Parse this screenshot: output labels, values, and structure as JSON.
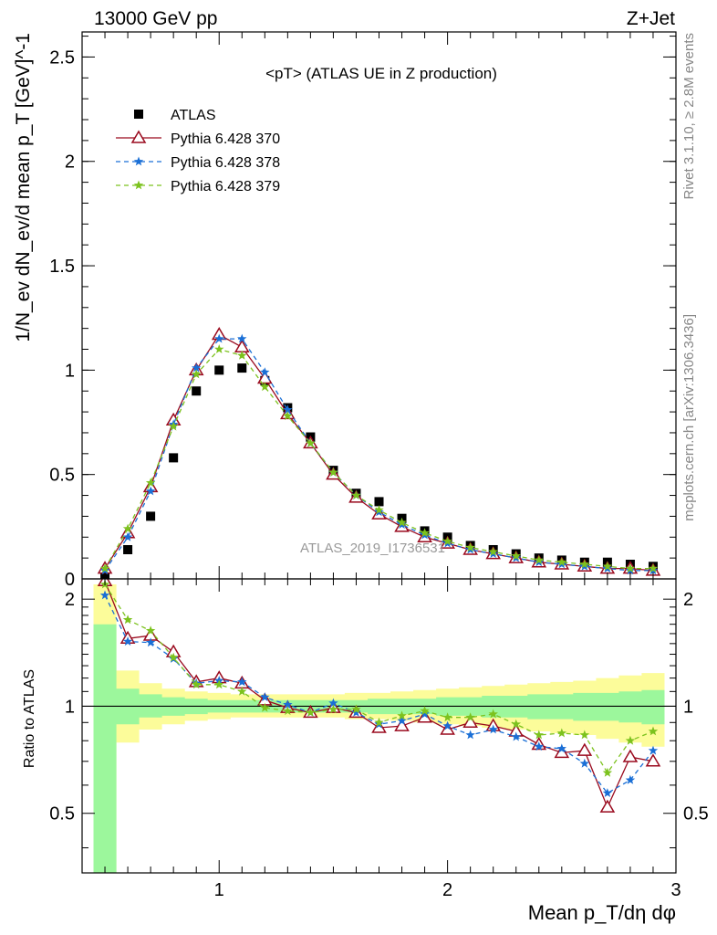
{
  "header": {
    "left": "13000 GeV pp",
    "right": "Z+Jet"
  },
  "side_labels": {
    "rivet": "Rivet 3.1.10, ≥ 2.8M events",
    "mcplots": "mcplots.cern.ch [arXiv:1306.3436]"
  },
  "watermark": "ATLAS_2019_I1736531",
  "colors": {
    "atlas": "#000000",
    "p370": "#9a0a1e",
    "p378": "#1a6fd6",
    "p379": "#7cc21e",
    "band_green": "#9cf79c",
    "band_yellow": "#fcfc9a"
  },
  "chart_data": [
    {
      "type": "scatter",
      "title": "<pT> (ATLAS UE in Z production)",
      "xlabel": "Mean p_T/dη dφ",
      "ylabel": "1/N_ev dN_ev/d mean p_T [GeV]^-1",
      "xlim": [
        0.4,
        3.0
      ],
      "ylim": [
        0,
        2.62
      ],
      "y_ticks": [
        "0",
        "0.5",
        "1",
        "1.5",
        "2",
        "2.5"
      ],
      "legend_position": "top-left",
      "x": [
        0.5,
        0.6,
        0.7,
        0.8,
        0.9,
        1.0,
        1.1,
        1.2,
        1.3,
        1.4,
        1.5,
        1.6,
        1.7,
        1.8,
        1.9,
        2.0,
        2.1,
        2.2,
        2.3,
        2.4,
        2.5,
        2.6,
        2.7,
        2.8,
        2.9
      ],
      "series": [
        {
          "name": "ATLAS",
          "marker": "square",
          "values": [
            0.02,
            0.14,
            0.3,
            0.58,
            0.9,
            1.0,
            1.01,
            0.95,
            0.82,
            0.68,
            0.52,
            0.41,
            0.37,
            0.29,
            0.23,
            0.2,
            0.16,
            0.14,
            0.12,
            0.1,
            0.09,
            0.08,
            0.08,
            0.07,
            0.06
          ]
        },
        {
          "name": "Pythia 6.428 370",
          "marker": "triangle",
          "values": [
            0.05,
            0.22,
            0.44,
            0.76,
            1.0,
            1.17,
            1.11,
            0.96,
            0.79,
            0.65,
            0.5,
            0.39,
            0.31,
            0.25,
            0.2,
            0.17,
            0.14,
            0.12,
            0.1,
            0.08,
            0.07,
            0.06,
            0.05,
            0.05,
            0.04
          ]
        },
        {
          "name": "Pythia 6.428 378",
          "marker": "star",
          "values": [
            0.04,
            0.2,
            0.42,
            0.74,
            1.01,
            1.15,
            1.15,
            0.99,
            0.81,
            0.65,
            0.51,
            0.4,
            0.32,
            0.26,
            0.21,
            0.17,
            0.14,
            0.12,
            0.1,
            0.08,
            0.07,
            0.06,
            0.05,
            0.04,
            0.04
          ]
        },
        {
          "name": "Pythia 6.428 379",
          "marker": "star",
          "values": [
            0.05,
            0.24,
            0.46,
            0.73,
            0.98,
            1.1,
            1.07,
            0.92,
            0.78,
            0.65,
            0.51,
            0.4,
            0.33,
            0.27,
            0.22,
            0.18,
            0.15,
            0.13,
            0.11,
            0.09,
            0.08,
            0.07,
            0.06,
            0.05,
            0.05
          ]
        }
      ]
    },
    {
      "type": "scatter",
      "title": "",
      "xlabel": "Mean p_T/dη dφ",
      "ylabel": "Ratio to ATLAS",
      "xlim": [
        0.4,
        3.0
      ],
      "ylim": [
        0.34,
        2.28
      ],
      "x_ticks": [
        "1",
        "2",
        "3"
      ],
      "y_ticks": [
        "0.5",
        "1",
        "2"
      ],
      "x": [
        0.5,
        0.6,
        0.7,
        0.8,
        0.9,
        1.0,
        1.1,
        1.2,
        1.3,
        1.4,
        1.5,
        1.6,
        1.7,
        1.8,
        1.9,
        2.0,
        2.1,
        2.2,
        2.3,
        2.4,
        2.5,
        2.6,
        2.7,
        2.8,
        2.9
      ],
      "bands": {
        "green_upper": [
          1.7,
          1.12,
          1.08,
          1.06,
          1.05,
          1.04,
          1.04,
          1.04,
          1.04,
          1.04,
          1.04,
          1.04,
          1.05,
          1.05,
          1.05,
          1.06,
          1.06,
          1.07,
          1.07,
          1.08,
          1.08,
          1.09,
          1.09,
          1.1,
          1.11
        ],
        "green_lower": [
          0.3,
          0.89,
          0.93,
          0.94,
          0.95,
          0.96,
          0.96,
          0.96,
          0.96,
          0.96,
          0.96,
          0.96,
          0.95,
          0.95,
          0.95,
          0.94,
          0.94,
          0.93,
          0.93,
          0.92,
          0.92,
          0.91,
          0.91,
          0.9,
          0.89
        ],
        "yellow_upper": [
          2.2,
          1.26,
          1.16,
          1.12,
          1.1,
          1.09,
          1.08,
          1.08,
          1.08,
          1.08,
          1.08,
          1.09,
          1.09,
          1.1,
          1.11,
          1.12,
          1.13,
          1.14,
          1.15,
          1.16,
          1.17,
          1.18,
          1.2,
          1.22,
          1.24
        ],
        "yellow_lower": [
          0.3,
          0.79,
          0.86,
          0.89,
          0.91,
          0.92,
          0.93,
          0.93,
          0.93,
          0.93,
          0.93,
          0.92,
          0.92,
          0.91,
          0.9,
          0.89,
          0.88,
          0.87,
          0.86,
          0.85,
          0.84,
          0.83,
          0.81,
          0.79,
          0.77
        ]
      },
      "series": [
        {
          "name": "Pythia 6.428 370",
          "marker": "triangle",
          "values": [
            2.25,
            1.55,
            1.58,
            1.42,
            1.17,
            1.2,
            1.16,
            1.04,
            0.99,
            0.96,
            0.99,
            0.96,
            0.87,
            0.88,
            0.93,
            0.86,
            0.9,
            0.88,
            0.85,
            0.78,
            0.74,
            0.75,
            0.52,
            0.72,
            0.7
          ]
        },
        {
          "name": "Pythia 6.428 378",
          "marker": "star",
          "values": [
            2.05,
            1.52,
            1.51,
            1.36,
            1.16,
            1.18,
            1.17,
            1.06,
            1.01,
            0.96,
            1.02,
            0.96,
            0.89,
            0.91,
            0.95,
            0.88,
            0.83,
            0.86,
            0.82,
            0.77,
            0.76,
            0.69,
            0.57,
            0.62,
            0.75
          ]
        },
        {
          "name": "Pythia 6.428 379",
          "marker": "star",
          "values": [
            2.2,
            1.75,
            1.63,
            1.37,
            1.15,
            1.15,
            1.1,
            0.99,
            0.97,
            0.96,
            0.98,
            0.98,
            0.9,
            0.94,
            0.97,
            0.93,
            0.93,
            0.95,
            0.89,
            0.83,
            0.84,
            0.83,
            0.65,
            0.8,
            0.85
          ]
        }
      ]
    }
  ]
}
